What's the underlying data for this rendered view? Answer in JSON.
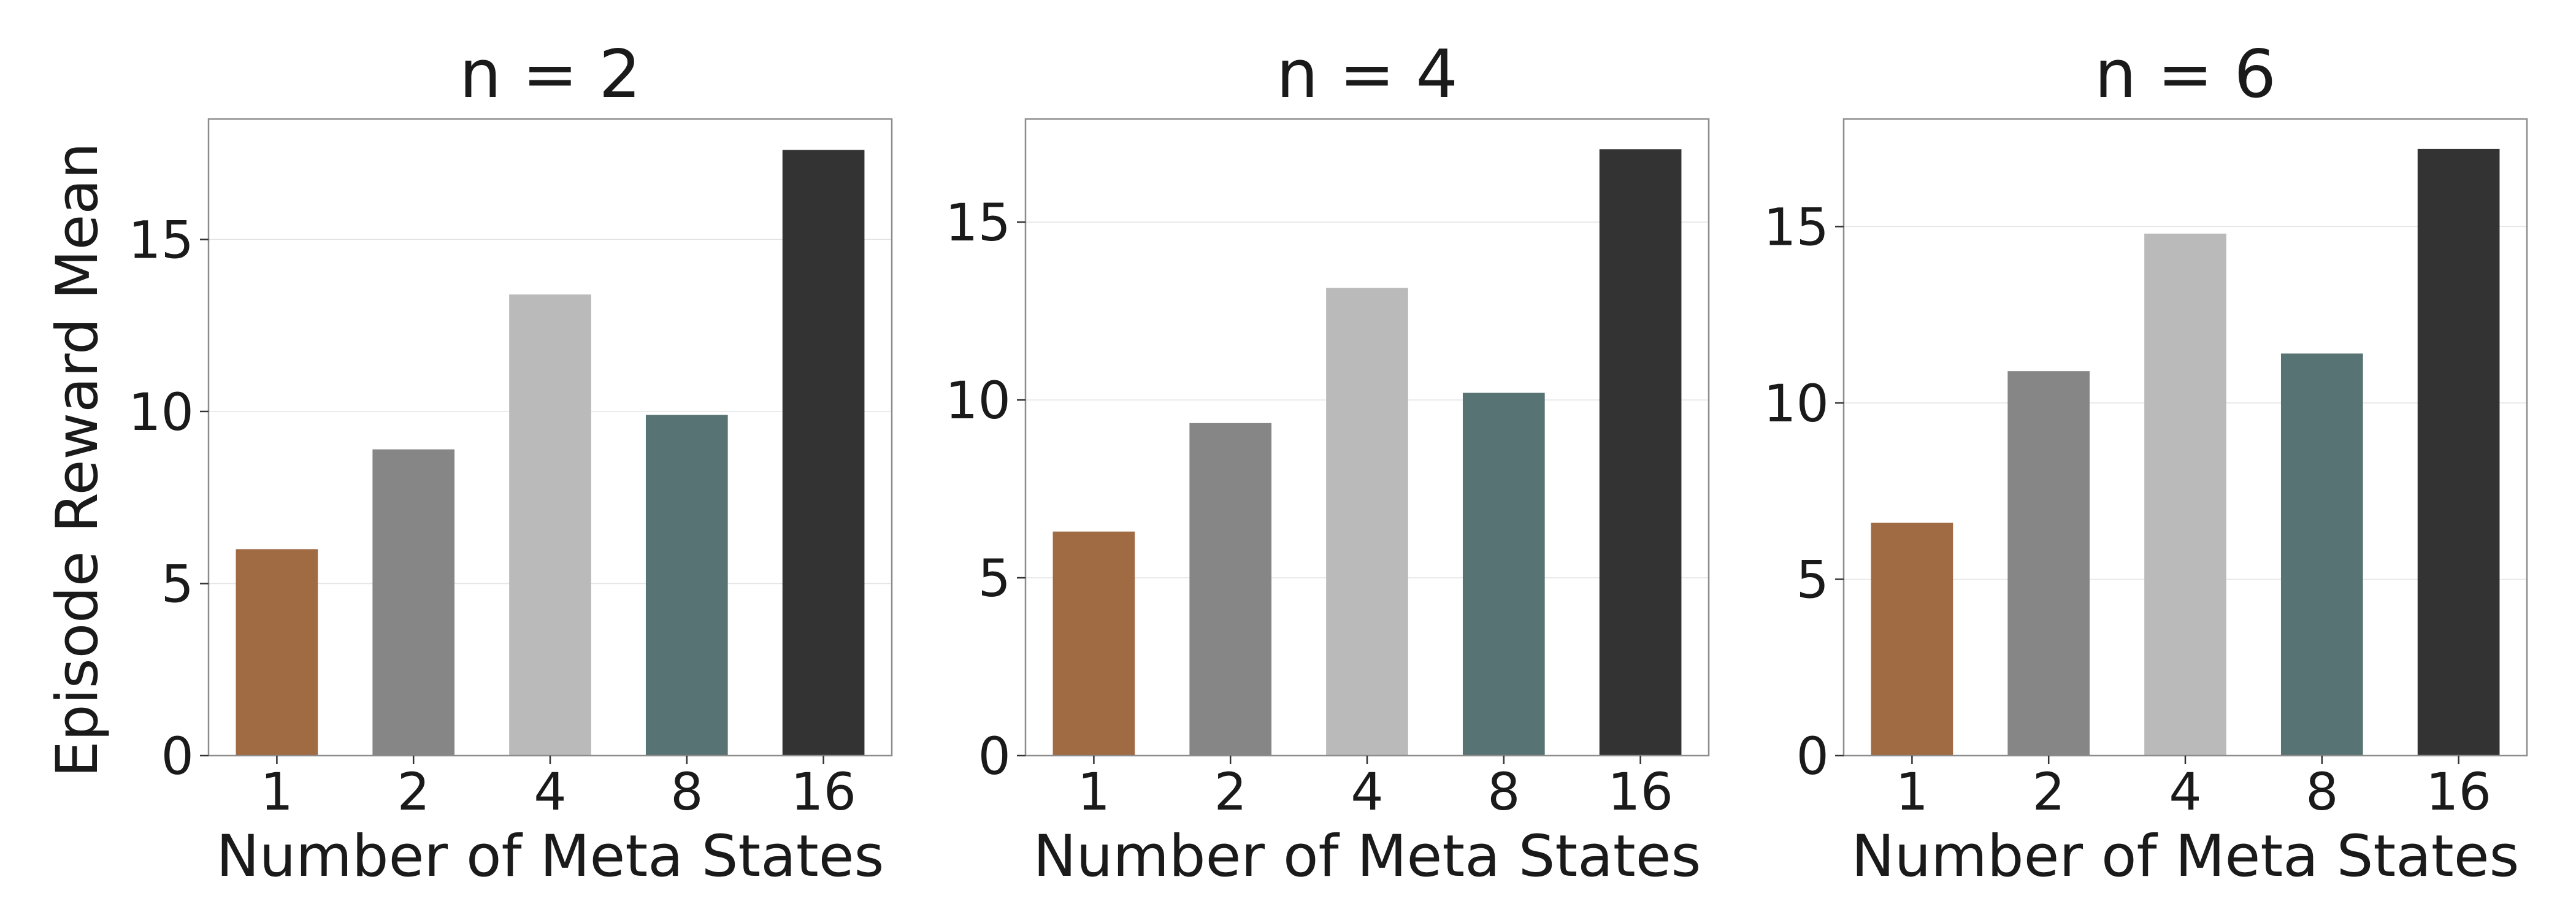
{
  "figure": {
    "ylabel": "Episode Reward Mean"
  },
  "chart_data": [
    {
      "type": "bar",
      "title": "n = 2",
      "xlabel": "Number of Meta States",
      "ylabel": "Episode Reward Mean",
      "categories": [
        "1",
        "2",
        "4",
        "8",
        "16"
      ],
      "values": [
        6.0,
        8.9,
        13.4,
        9.9,
        17.6
      ],
      "colors": [
        "#a06a43",
        "#868686",
        "#bababa",
        "#587373",
        "#333333"
      ],
      "ylim": [
        0,
        18.5
      ],
      "yticks": [
        0,
        5,
        10,
        15
      ],
      "grid": "horizontal"
    },
    {
      "type": "bar",
      "title": "n = 4",
      "xlabel": "Number of Meta States",
      "ylabel": "",
      "categories": [
        "1",
        "2",
        "4",
        "8",
        "16"
      ],
      "values": [
        6.3,
        9.35,
        13.15,
        10.2,
        17.05
      ],
      "colors": [
        "#a06a43",
        "#868686",
        "#bababa",
        "#587373",
        "#333333"
      ],
      "ylim": [
        0,
        17.9
      ],
      "yticks": [
        0,
        5,
        10,
        15
      ],
      "grid": "horizontal"
    },
    {
      "type": "bar",
      "title": "n = 6",
      "xlabel": "Number of Meta States",
      "ylabel": "",
      "categories": [
        "1",
        "2",
        "4",
        "8",
        "16"
      ],
      "values": [
        6.6,
        10.9,
        14.8,
        11.4,
        17.2
      ],
      "colors": [
        "#a06a43",
        "#868686",
        "#bababa",
        "#587373",
        "#333333"
      ],
      "ylim": [
        0,
        18.05
      ],
      "yticks": [
        0,
        5,
        10,
        15
      ],
      "grid": "horizontal"
    }
  ]
}
